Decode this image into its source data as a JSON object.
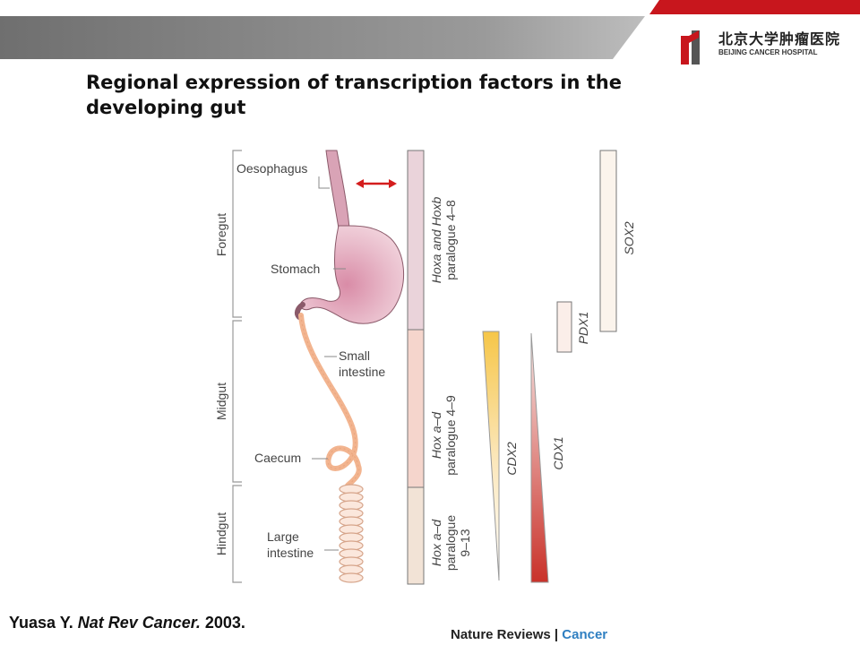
{
  "header": {
    "logo_cn": "北京大学肿瘤医院",
    "logo_en": "BEIJING CANCER HOSPITAL",
    "colors": {
      "gray_bar": "#7c7c7c",
      "red_accent": "#c8161d"
    }
  },
  "slide": {
    "title": "Regional expression of transcription factors in the developing gut"
  },
  "figure": {
    "regions": {
      "foregut": "Foregut",
      "midgut": "Midgut",
      "hindgut": "Hindgut"
    },
    "organs": {
      "oesophagus": "Oesophagus",
      "stomach": "Stomach",
      "small_intestine_1": "Small",
      "small_intestine_2": "intestine",
      "caecum": "Caecum",
      "large_intestine_1": "Large",
      "large_intestine_2": "intestine"
    },
    "hox": {
      "seg1_line1": "Hoxa and Hoxb",
      "seg1_line2": "paralogue 4–8",
      "seg2_line1": "Hox a–d",
      "seg2_line2": "paralogue 4–9",
      "seg3_line1": "Hox a–d",
      "seg3_line2": "paralogue",
      "seg3_line3": "9–13"
    },
    "factors": {
      "cdx2": "CDX2",
      "cdx1": "CDX1",
      "pdx1": "PDX1",
      "sox2": "SOX2"
    },
    "colors": {
      "hox_seg1": "#ead3da",
      "hox_seg2": "#f5d5cc",
      "hox_seg3": "#f2e3d6",
      "cdx2_top": "#f6c648",
      "cdx1_bottom": "#c9322a",
      "gut": "#f2b48f",
      "stomach": "#e4b3c3",
      "arrow": "#d41d1d"
    }
  },
  "citation": {
    "author": "Yuasa Y.",
    "journal": "Nat Rev Cancer.",
    "year": "2003."
  },
  "source": {
    "journal_name": "Nature Reviews",
    "separator": "|",
    "section": "Cancer"
  }
}
